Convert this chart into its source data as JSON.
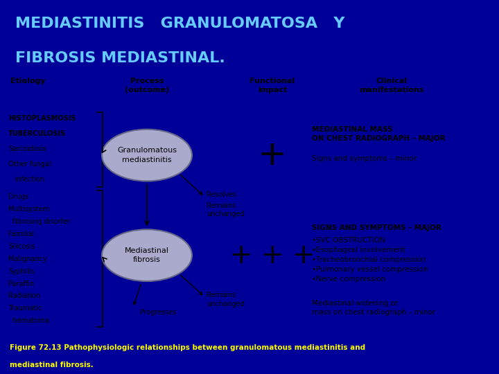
{
  "title_line1": "MEDIASTINITIS   GRANULOMATOSA   Y",
  "title_line2": "FIBROSIS MEDIASTINAL.",
  "title_color": "#66ccff",
  "title_bg": "#000099",
  "main_bg": "#d8d8d8",
  "footer_text_line1": "Figure 72.13 Pathophysiologic relationships between granulomatous mediastinitis and",
  "footer_text_line2": "mediastinal fibrosis.",
  "footer_bg": "#000099",
  "footer_color": "#ffff00",
  "col_header0": "Etiology",
  "col_header1": "Process\n(outcome)",
  "col_header2": "Functional\nimpact",
  "col_header3": "Clinical\nmanifestations",
  "circle1_label": "Granulomatous\nmediastinitis",
  "circle2_label": "Mediastinal\nfibrosis",
  "circle_color": "#aaaacc",
  "circle_edge_color": "#666688",
  "etiology1": [
    "HISTOPLASMOSIS",
    "TUBERCULOSIS",
    "Sarcoidosis",
    "Other fungal",
    "   infection"
  ],
  "etiology2": [
    "Drugs",
    "Multisystem",
    "  fibrosing disorter",
    "Familial",
    "Silicosis",
    "Malignancy",
    "Syphilis",
    "Paraffin",
    "Radiation",
    "Traumatic",
    "  hematoma"
  ],
  "resolves_text": "Resolves",
  "remains1_text": "Remains\nunchanged",
  "progresses_text": "Progresses",
  "remains2_text": "Remains\nunchanged",
  "clinical1_major": "MEDIASTINAL MASS\nON CHEST RADIOGRAPH – MAJOR",
  "clinical1_minor": "Signs and symptoms – minor",
  "clinical2_major_title": "SIGNS AND SYMPTOMS – MAJOR",
  "clinical2_major_body": "•SVC OBSTRUCTION\n•Esophageal involvement\n•Tracheobronchial compression\n•Pulmonary vessel compression\n•Nerve compression",
  "clinical2_minor": "Mediastinal widening or\nmass on chest radiograph – minor",
  "plus1": "+",
  "plus2": "+ + +"
}
